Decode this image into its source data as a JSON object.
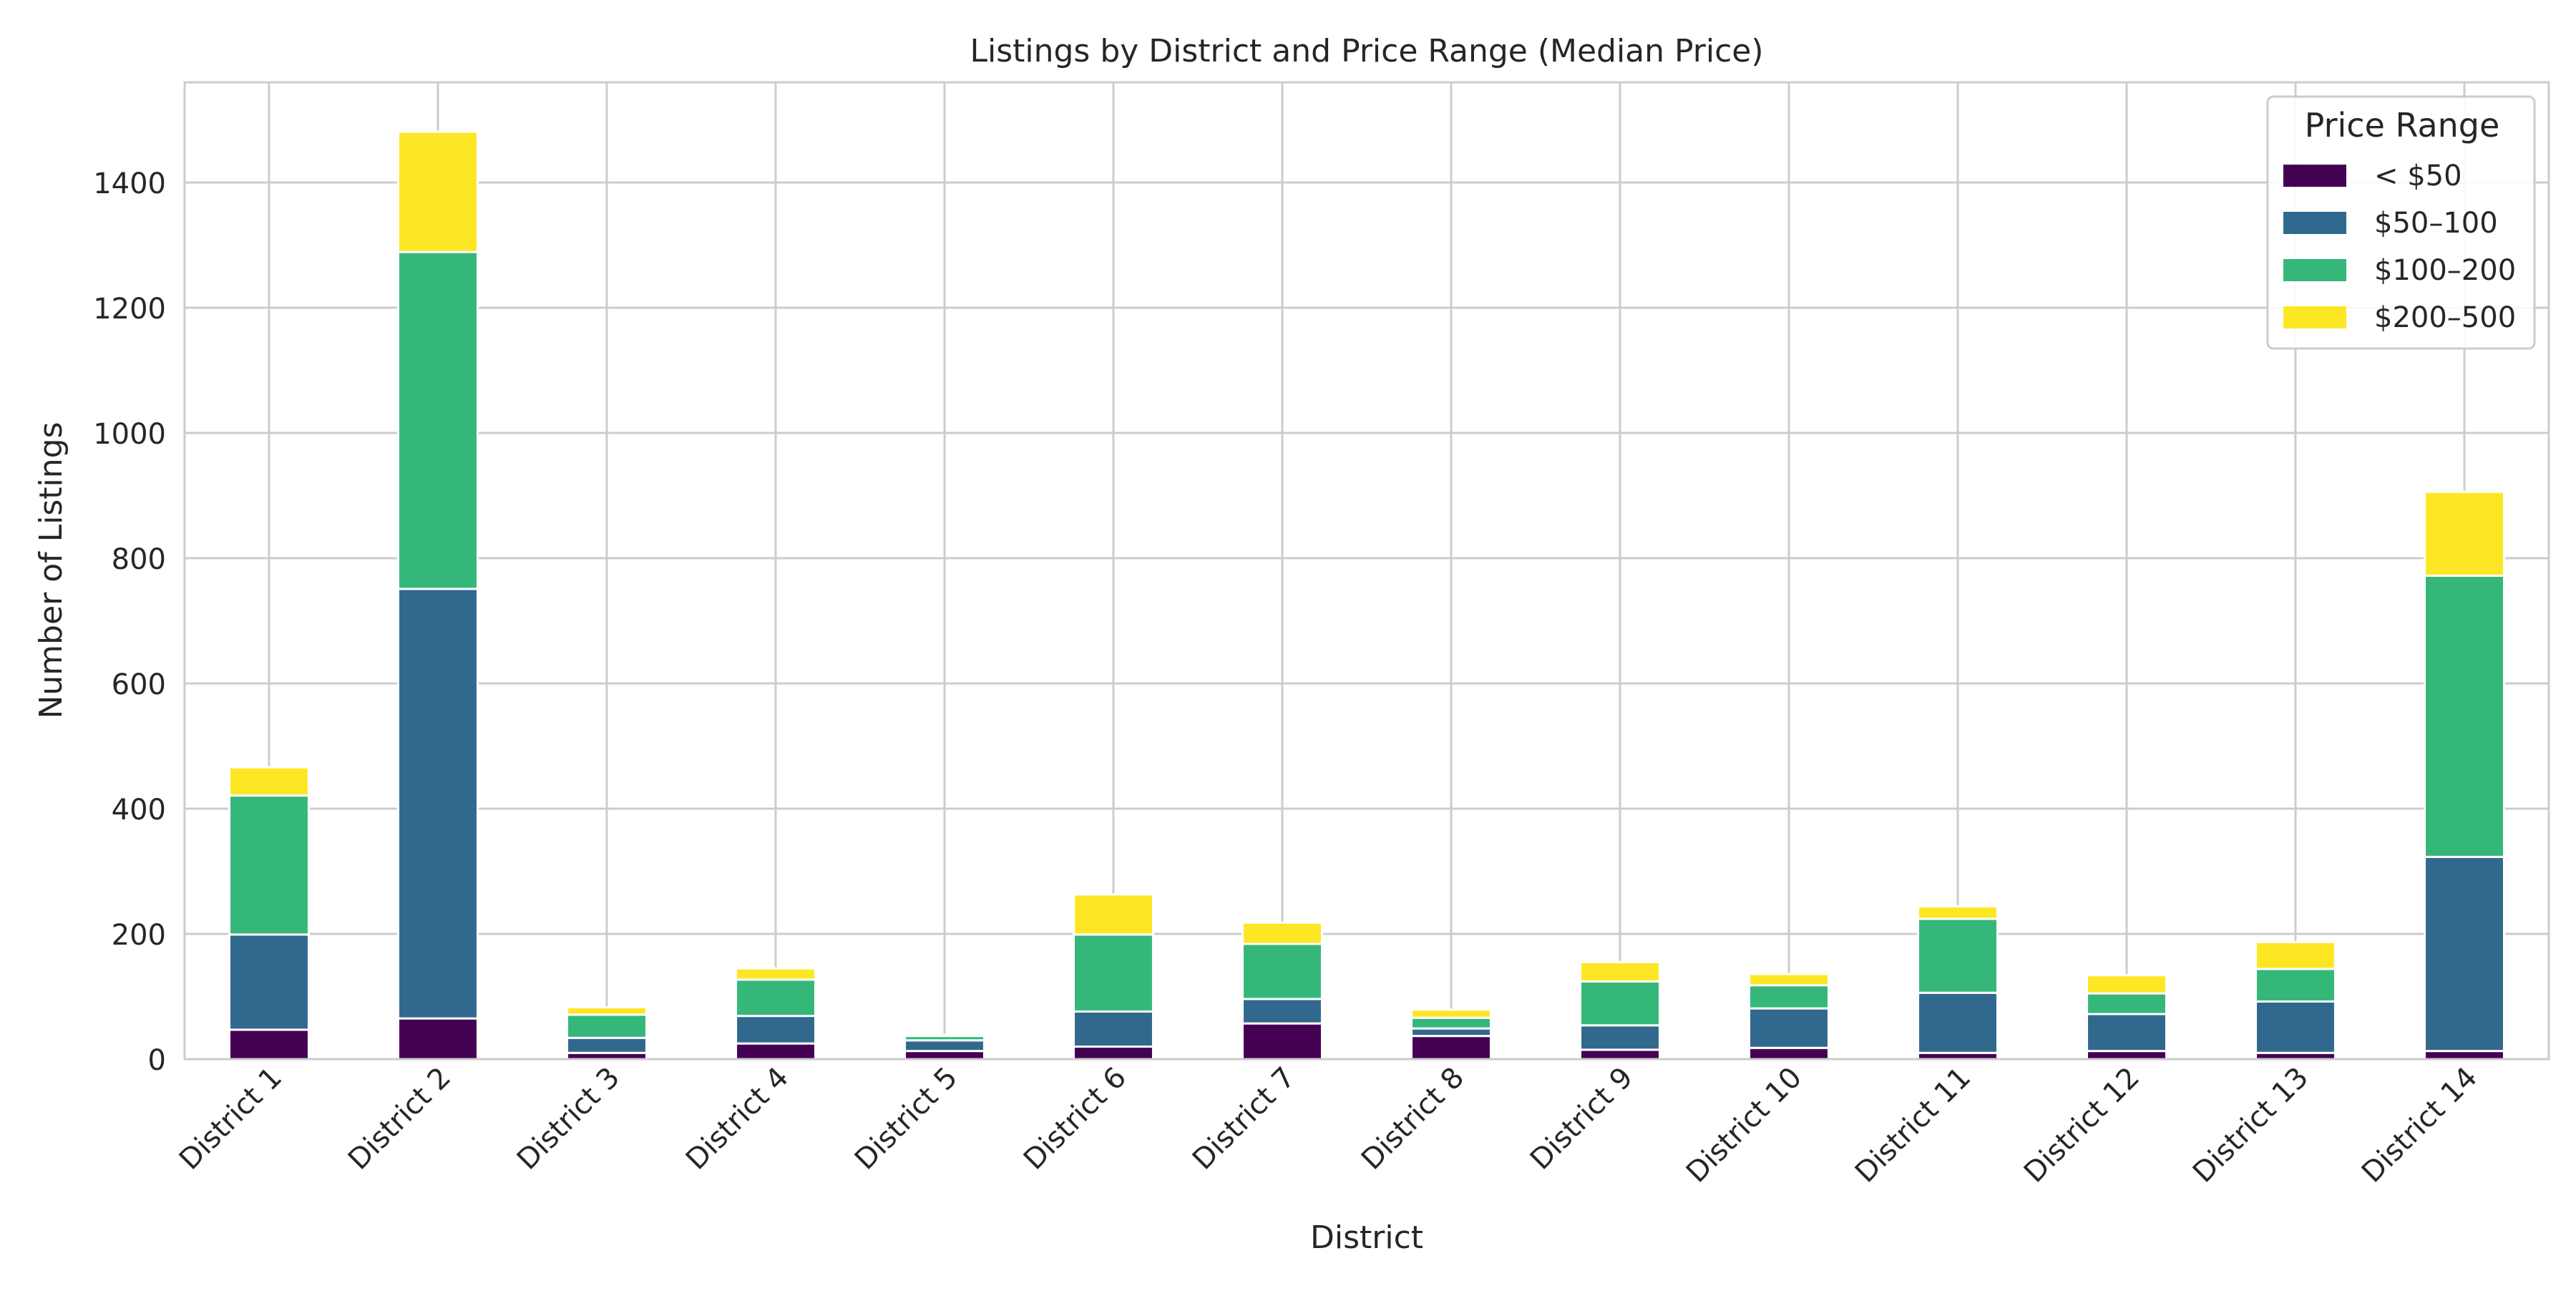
{
  "chart_data": {
    "type": "bar",
    "stacked": true,
    "title": "Listings by District and Price Range (Median Price)",
    "xlabel": "District",
    "ylabel": "Number of Listings",
    "categories": [
      "District 1",
      "District 2",
      "District 3",
      "District 4",
      "District 5",
      "District 6",
      "District 7",
      "District 8",
      "District 9",
      "District 10",
      "District 11",
      "District 12",
      "District 13",
      "District 14"
    ],
    "series": [
      {
        "name": "< $50",
        "color": "#440154",
        "values": [
          47,
          65,
          10,
          25,
          13,
          20,
          57,
          37,
          15,
          18,
          10,
          13,
          10,
          13
        ]
      },
      {
        "name": "$50–100",
        "color": "#31688e",
        "values": [
          152,
          686,
          24,
          44,
          17,
          56,
          39,
          12,
          39,
          63,
          96,
          59,
          82,
          310
        ]
      },
      {
        "name": "$100–200",
        "color": "#35b779",
        "values": [
          222,
          538,
          37,
          58,
          7,
          123,
          88,
          17,
          70,
          37,
          118,
          33,
          52,
          449
        ]
      },
      {
        "name": "$200–500",
        "color": "#fde725",
        "values": [
          45,
          192,
          12,
          18,
          2,
          64,
          34,
          13,
          31,
          18,
          20,
          29,
          43,
          134
        ]
      }
    ],
    "ylim": [
      0,
      1560
    ],
    "yticks": [
      0,
      200,
      400,
      600,
      800,
      1000,
      1200,
      1400
    ],
    "grid": true,
    "legend": {
      "title": "Price Range",
      "placement": "top-right"
    }
  }
}
